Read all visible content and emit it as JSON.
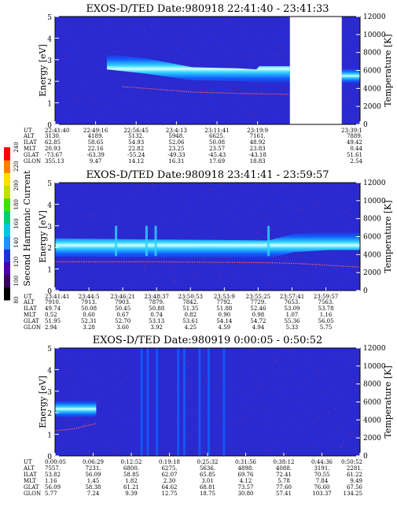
{
  "figure": {
    "colorbar": {
      "label": "Second Harmonic Current",
      "ticks": [
        "80",
        "100",
        "120",
        "140",
        "160",
        "180",
        "200",
        "220",
        "240"
      ],
      "colors": [
        "#000000",
        "#3a0060",
        "#4b00a8",
        "#2030d8",
        "#1e90ff",
        "#00c8e0",
        "#00d070",
        "#40e000",
        "#c0e000",
        "#ffe000",
        "#ff8000",
        "#ff0000"
      ]
    },
    "colors": {
      "background": "#2a2ad0",
      "band_core": "#d0ffff",
      "band_mid": "#30d0ff",
      "band_outer": "#1060ff",
      "temperature": "#ff6060",
      "noise": "#b03060"
    }
  },
  "chart_data": [
    {
      "type": "heatmap",
      "title": "EXOS-D/TED   Date:980918  22:41:40 - 23:41:33",
      "ylabel": "Energy [eV]",
      "y2label": "Temperature [K]",
      "ylim": [
        0,
        5
      ],
      "y2lim": [
        0,
        12000
      ],
      "yticks": [
        "0",
        "1",
        "2",
        "3",
        "4",
        "5"
      ],
      "y2ticks": [
        "0",
        "2000",
        "4000",
        "6000",
        "8000",
        "10000",
        "12000"
      ],
      "data_gap": [
        0.77,
        0.94
      ],
      "band": [
        {
          "t": 0.17,
          "e": 2.9,
          "w": 0.35
        },
        {
          "t": 0.3,
          "e": 2.7,
          "w": 0.35
        },
        {
          "t": 0.45,
          "e": 2.35,
          "w": 0.3
        },
        {
          "t": 0.6,
          "e": 2.3,
          "w": 0.3
        },
        {
          "t": 0.66,
          "e": 2.25,
          "w": 0.3
        },
        {
          "t": 0.67,
          "e": 2.3,
          "w": 0.4
        },
        {
          "t": 0.77,
          "e": 2.3,
          "w": 0.4
        }
      ],
      "band2": [
        {
          "t": 0.94,
          "e": 2.25,
          "w": 0.35
        },
        {
          "t": 1.0,
          "e": 2.25,
          "w": 0.35
        }
      ],
      "temperature": [
        {
          "t": 0.22,
          "k": 4200
        },
        {
          "t": 0.3,
          "k": 4000
        },
        {
          "t": 0.45,
          "k": 3600
        },
        {
          "t": 0.6,
          "k": 3450
        },
        {
          "t": 0.77,
          "k": 3350
        }
      ],
      "table": {
        "labels": [
          "UT",
          "ALT",
          "ILAT",
          "MLT",
          "GLAT",
          "GLON"
        ],
        "columns": [
          {
            "pos": 0.0,
            "values": [
              "22:41:40",
              "3130.",
              "62.85",
              "20.93",
              "-73.67",
              "355.13"
            ]
          },
          {
            "pos": 0.133,
            "values": [
              "22:49:16",
              "4189.",
              "58.65",
              "22.16",
              "-63.39",
              "9.47"
            ]
          },
          {
            "pos": 0.266,
            "values": [
              "22:56:45",
              "5132.",
              "54.93",
              "22.82",
              "-55.24",
              "14.12"
            ]
          },
          {
            "pos": 0.398,
            "values": [
              "23:4:13",
              "5948.",
              "52.06",
              "23.25",
              "-49.33",
              "16.31"
            ]
          },
          {
            "pos": 0.531,
            "values": [
              "23:11:41",
              "6625.",
              "50.08",
              "23.57",
              "-45.43",
              "17.69"
            ]
          },
          {
            "pos": 0.664,
            "values": [
              "23:19:9",
              "7161.",
              "48.92",
              "23.83",
              "-43.18",
              "18.83"
            ]
          },
          {
            "pos": 1.0,
            "values": [
              "23:39:1",
              "7889.",
              "49.42",
              "0.44",
              "51.61",
              "2.54"
            ]
          }
        ]
      }
    },
    {
      "type": "heatmap",
      "title": "EXOS-D/TED   Date:980918  23:41:41 - 23:59:57",
      "ylabel": "Energy [eV]",
      "y2label": "Temperature [K]",
      "ylim": [
        0,
        5
      ],
      "y2lim": [
        0,
        12000
      ],
      "yticks": [
        "0",
        "1",
        "2",
        "3",
        "4",
        "5"
      ],
      "y2ticks": [
        "0",
        "2000",
        "4000",
        "6000",
        "8000",
        "10000",
        "12000"
      ],
      "band": [
        {
          "t": 0.0,
          "e": 2.0,
          "w": 0.42
        },
        {
          "t": 0.3,
          "e": 1.95,
          "w": 0.42
        },
        {
          "t": 0.7,
          "e": 1.9,
          "w": 0.42
        },
        {
          "t": 0.78,
          "e": 2.2,
          "w": 0.42
        },
        {
          "t": 0.9,
          "e": 2.3,
          "w": 0.42
        },
        {
          "t": 1.0,
          "e": 2.3,
          "w": 0.42
        }
      ],
      "spikes": [
        0.2,
        0.3,
        0.33,
        0.7
      ],
      "temperature": [
        {
          "t": 0.0,
          "k": 3200
        },
        {
          "t": 0.3,
          "k": 3200
        },
        {
          "t": 0.7,
          "k": 3100
        },
        {
          "t": 0.8,
          "k": 3000
        },
        {
          "t": 1.0,
          "k": 2600
        }
      ],
      "table": {
        "labels": [
          "UT",
          "ALT",
          "ILAT",
          "MLT",
          "GLAT",
          "GLON"
        ],
        "columns": [
          {
            "pos": 0.0,
            "values": [
              "23:41:41",
              "7910.",
              "49.74",
              "0.52",
              "51.95",
              "2.94"
            ]
          },
          {
            "pos": 0.111,
            "values": [
              "23:44:5",
              "7913.",
              "50.08",
              "0.60",
              "52.31",
              "3.28"
            ]
          },
          {
            "pos": 0.222,
            "values": [
              "23:46:21",
              "7903.",
              "50.45",
              "0.67",
              "52.70",
              "3.60"
            ]
          },
          {
            "pos": 0.333,
            "values": [
              "23:48:37",
              "7879.",
              "50.88",
              "0.74",
              "53.13",
              "3.92"
            ]
          },
          {
            "pos": 0.444,
            "values": [
              "23:50:53",
              "7842.",
              "51.35",
              "0.82",
              "53.61",
              "4.25"
            ]
          },
          {
            "pos": 0.555,
            "values": [
              "23:53:9",
              "7792.",
              "51.88",
              "0.90",
              "54.14",
              "4.59"
            ]
          },
          {
            "pos": 0.666,
            "values": [
              "23:55:25",
              "7729.",
              "52.46",
              "0.98",
              "54.72",
              "4.94"
            ]
          },
          {
            "pos": 0.777,
            "values": [
              "23:57:41",
              "7653.",
              "53.09",
              "1.07",
              "55.36",
              "5.33"
            ]
          },
          {
            "pos": 0.888,
            "values": [
              "23:59:57",
              "7563.",
              "53.78",
              "1.16",
              "56.05",
              "5.75"
            ]
          }
        ]
      }
    },
    {
      "type": "heatmap",
      "title": "EXOS-D/TED   Date:980919   0:00:05 - 0:50:52",
      "ylabel": "Energy [eV]",
      "y2label": "Temperature [K]",
      "ylim": [
        0,
        5
      ],
      "y2lim": [
        0,
        12000
      ],
      "yticks": [
        "0",
        "1",
        "2",
        "3",
        "4",
        "5"
      ],
      "y2ticks": [
        "0",
        "2000",
        "4000",
        "6000",
        "8000",
        "10000",
        "12000"
      ],
      "band": [
        {
          "t": 0.0,
          "e": 2.15,
          "w": 0.38
        },
        {
          "t": 0.1,
          "e": 2.2,
          "w": 0.38
        },
        {
          "t": 0.135,
          "e": 2.2,
          "w": 0.38
        }
      ],
      "stripes": [
        0.28,
        0.3,
        0.33,
        0.4,
        0.42,
        0.47,
        0.5,
        0.55
      ],
      "temperature": [
        {
          "t": 0.0,
          "k": 2800
        },
        {
          "t": 0.06,
          "k": 3000
        },
        {
          "t": 0.135,
          "k": 3600
        }
      ],
      "table": {
        "labels": [
          "UT",
          "ALT",
          "ILAT",
          "MLT",
          "GLAT",
          "GLON"
        ],
        "columns": [
          {
            "pos": 0.0,
            "values": [
              "0:00:05",
              "7557.",
              "53.82",
              "1.16",
              "56.09",
              "5.77"
            ]
          },
          {
            "pos": 0.125,
            "values": [
              "0:06:29",
              "7231.",
              "56.09",
              "1.45",
              "58.38",
              "7.24"
            ]
          },
          {
            "pos": 0.25,
            "values": [
              "0:12:52",
              "6800.",
              "58.85",
              "1.82",
              "61.21",
              "9.39"
            ]
          },
          {
            "pos": 0.375,
            "values": [
              "0:19:18",
              "6275.",
              "62.07",
              "2.30",
              "64.62",
              "12.75"
            ]
          },
          {
            "pos": 0.5,
            "values": [
              "0:25:32",
              "5636.",
              "65.85",
              "3.01",
              "68.81",
              "18.75"
            ]
          },
          {
            "pos": 0.625,
            "values": [
              "0:31:56",
              "4898.",
              "69.76",
              "4.12",
              "73.57",
              "30.80"
            ]
          },
          {
            "pos": 0.75,
            "values": [
              "0:38:12",
              "4088.",
              "72.41",
              "5.78",
              "77.60",
              "57.41"
            ]
          },
          {
            "pos": 0.875,
            "values": [
              "0:44:36",
              "3191.",
              "70.55",
              "7.84",
              "76.60",
              "103.37"
            ]
          },
          {
            "pos": 1.0,
            "values": [
              "0:50:52",
              "2281.",
              "61.22",
              "9.49",
              "67.56",
              "134.25"
            ]
          }
        ]
      }
    }
  ]
}
